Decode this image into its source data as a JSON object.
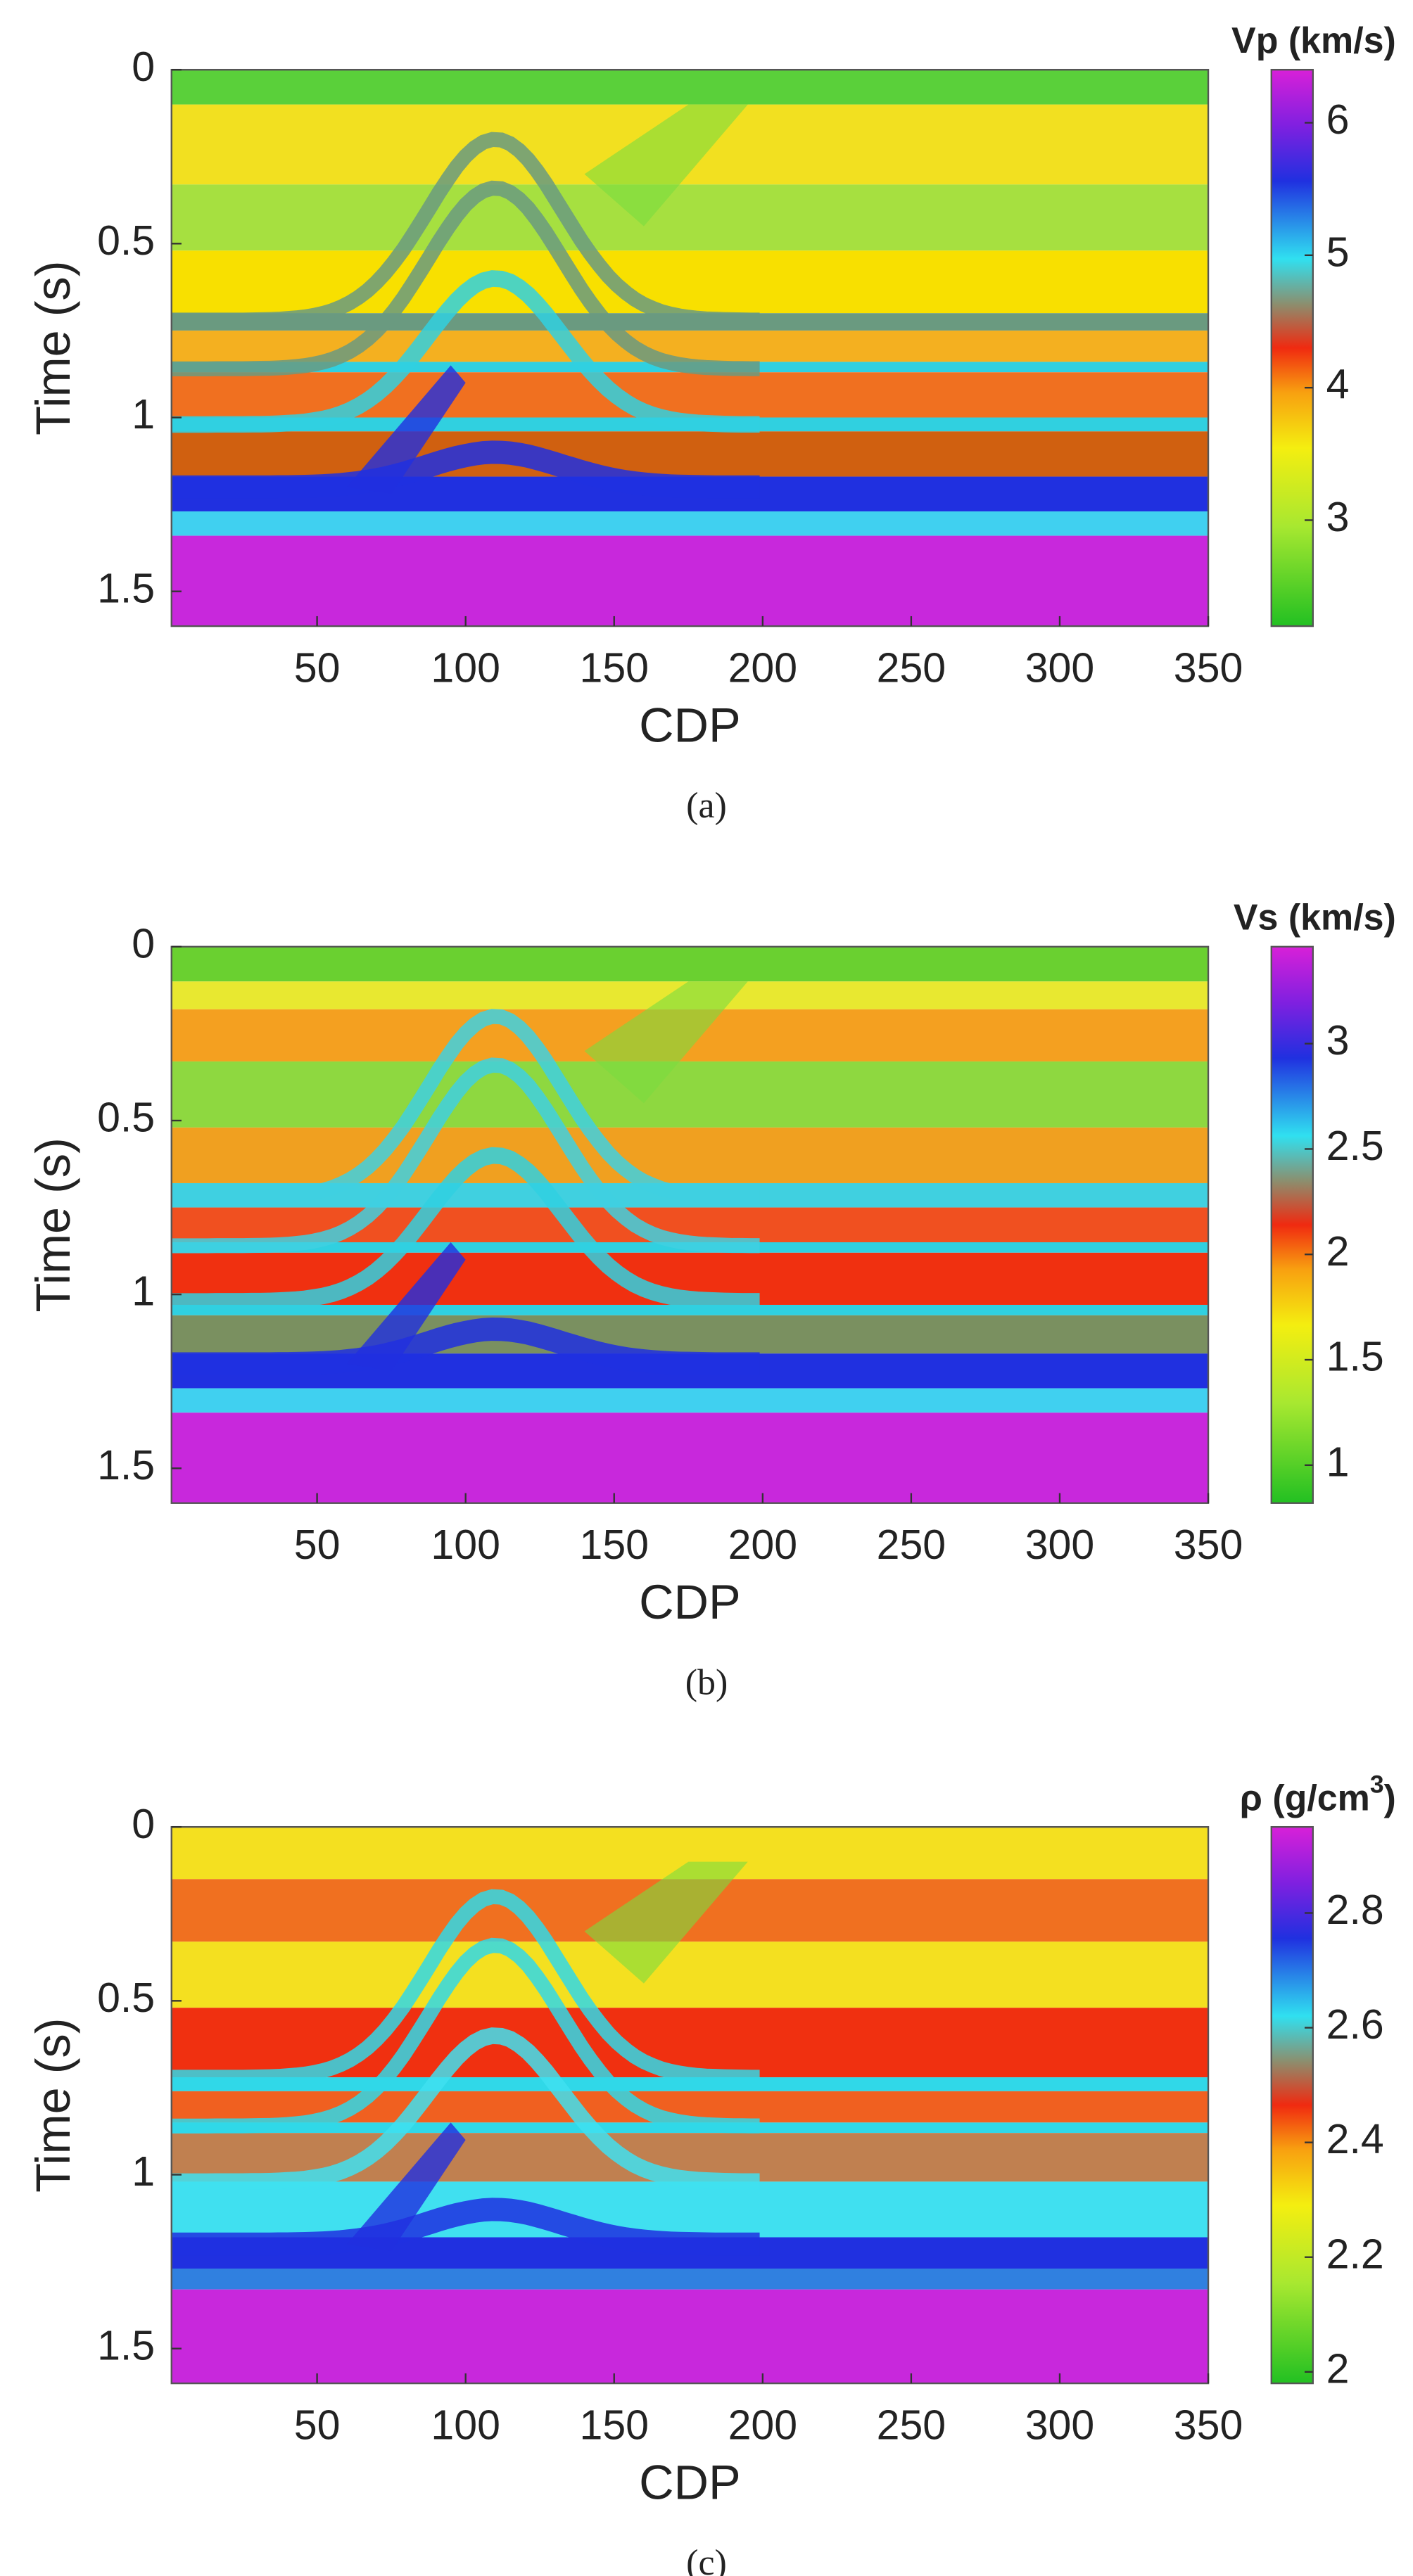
{
  "chart_data": [
    {
      "type": "heatmap",
      "xlabel": "CDP",
      "ylabel": "Time (s)",
      "colorbar_label": "Vp (km/s)",
      "caption": "(a)",
      "xlim": [
        1,
        350
      ],
      "xticks": [
        50,
        100,
        150,
        200,
        250,
        300,
        350
      ],
      "ylim": [
        0,
        1.6
      ],
      "yticks": [
        0,
        0.5,
        1,
        1.5
      ],
      "clim": [
        2.2,
        6.4
      ],
      "cticks": [
        3,
        4,
        5,
        6
      ]
    },
    {
      "type": "heatmap",
      "xlabel": "CDP",
      "ylabel": "Time (s)",
      "colorbar_label": "Vs (km/s)",
      "caption": "(b)",
      "xlim": [
        1,
        350
      ],
      "xticks": [
        50,
        100,
        150,
        200,
        250,
        300,
        350
      ],
      "ylim": [
        0,
        1.6
      ],
      "yticks": [
        0,
        0.5,
        1,
        1.5
      ],
      "clim": [
        0.82,
        3.46
      ],
      "cticks": [
        1,
        1.5,
        2,
        2.5,
        3
      ]
    },
    {
      "type": "heatmap",
      "xlabel": "CDP",
      "ylabel": "Time (s)",
      "colorbar_label": [
        "ρ (g/cm",
        "3",
        ")"
      ],
      "caption": "(c)",
      "xlim": [
        1,
        350
      ],
      "xticks": [
        50,
        100,
        150,
        200,
        250,
        300,
        350
      ],
      "ylim": [
        0,
        1.6
      ],
      "yticks": [
        0,
        0.5,
        1,
        1.5
      ],
      "clim": [
        1.98,
        2.95
      ],
      "cticks": [
        2,
        2.2,
        2.4,
        2.6,
        2.8
      ]
    }
  ]
}
